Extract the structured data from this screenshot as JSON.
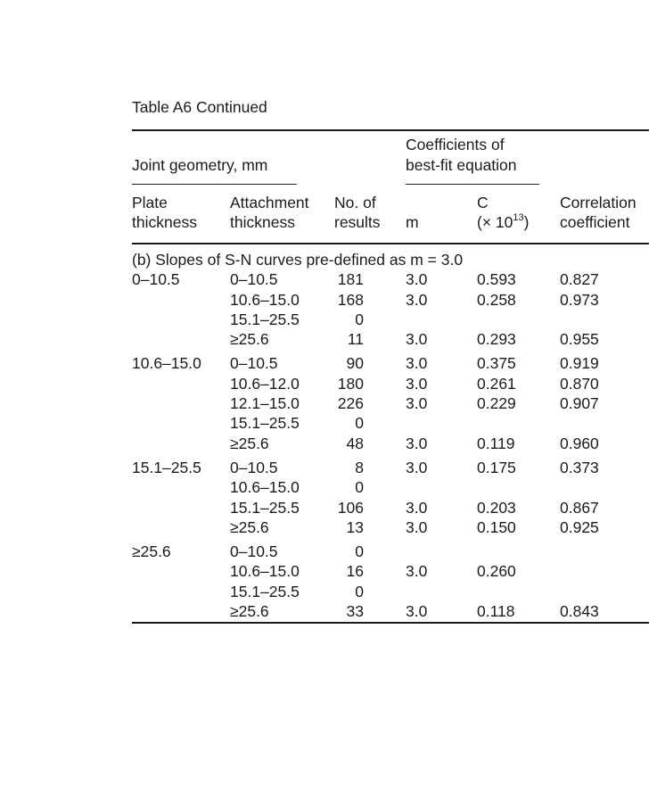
{
  "page": {
    "title": "Table A6 Continued"
  },
  "colors": {
    "text": "#1b1b1b",
    "rule": "#1a1a1a",
    "background": "#ffffff"
  },
  "table": {
    "header": {
      "joint_geometry": "Joint geometry, mm",
      "coefficients_line1": "Coefficients of",
      "coefficients_line2": "best-fit equation",
      "col_plate_line1": "Plate",
      "col_plate_line2": "thickness",
      "col_attachment_line1": "Attachment",
      "col_attachment_line2": "thickness",
      "col_results_line1": "No. of",
      "col_results_line2": "results",
      "col_m": "m",
      "col_c_line1": "C",
      "col_c_prefix": "(× 10",
      "col_c_sup": "13",
      "col_c_suffix": ")",
      "col_correlation_line1": "Correlation",
      "col_correlation_line2": "coefficient"
    },
    "section_label": "(b) Slopes of S-N curves pre-defined as m = 3.0",
    "rows": [
      {
        "plate": "0–10.5",
        "attachment": "0–10.5",
        "n": "181",
        "m": "3.0",
        "c": "0.593",
        "r": "0.827"
      },
      {
        "plate": "",
        "attachment": "10.6–15.0",
        "n": "168",
        "m": "3.0",
        "c": "0.258",
        "r": "0.973"
      },
      {
        "plate": "",
        "attachment": "15.1–25.5",
        "n": "0",
        "m": "",
        "c": "",
        "r": ""
      },
      {
        "plate": "",
        "attachment": "≥25.6",
        "n": "11",
        "m": "3.0",
        "c": "0.293",
        "r": "0.955"
      },
      {
        "plate": "10.6–15.0",
        "attachment": "0–10.5",
        "n": "90",
        "m": "3.0",
        "c": "0.375",
        "r": "0.919"
      },
      {
        "plate": "",
        "attachment": "10.6–12.0",
        "n": "180",
        "m": "3.0",
        "c": "0.261",
        "r": "0.870"
      },
      {
        "plate": "",
        "attachment": "12.1–15.0",
        "n": "226",
        "m": "3.0",
        "c": "0.229",
        "r": "0.907"
      },
      {
        "plate": "",
        "attachment": "15.1–25.5",
        "n": "0",
        "m": "",
        "c": "",
        "r": ""
      },
      {
        "plate": "",
        "attachment": "≥25.6",
        "n": "48",
        "m": "3.0",
        "c": "0.119",
        "r": "0.960"
      },
      {
        "plate": "15.1–25.5",
        "attachment": "0–10.5",
        "n": "8",
        "m": "3.0",
        "c": "0.175",
        "r": "0.373"
      },
      {
        "plate": "",
        "attachment": "10.6–15.0",
        "n": "0",
        "m": "",
        "c": "",
        "r": ""
      },
      {
        "plate": "",
        "attachment": "15.1–25.5",
        "n": "106",
        "m": "3.0",
        "c": "0.203",
        "r": "0.867"
      },
      {
        "plate": "",
        "attachment": "≥25.6",
        "n": "13",
        "m": "3.0",
        "c": "0.150",
        "r": "0.925"
      },
      {
        "plate": "≥25.6",
        "attachment": "0–10.5",
        "n": "0",
        "m": "",
        "c": "",
        "r": ""
      },
      {
        "plate": "",
        "attachment": "10.6–15.0",
        "n": "16",
        "m": "3.0",
        "c": "0.260",
        "r": ""
      },
      {
        "plate": "",
        "attachment": "15.1–25.5",
        "n": "0",
        "m": "",
        "c": "",
        "r": ""
      },
      {
        "plate": "",
        "attachment": "≥25.6",
        "n": "33",
        "m": "3.0",
        "c": "0.118",
        "r": "0.843"
      }
    ]
  }
}
